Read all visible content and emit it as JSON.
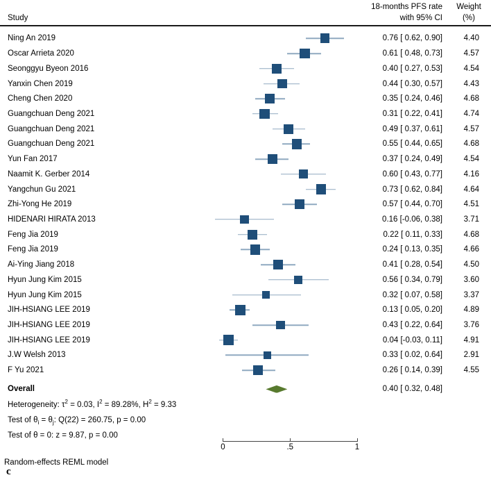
{
  "header": {
    "study_col": "Study",
    "effect_col_line1": "18-months PFS rate",
    "effect_col_line2": "with 95% CI",
    "weight_col_line1": "Weight",
    "weight_col_line2": "(%)"
  },
  "chart_data": {
    "type": "forest",
    "effect_measure": "18-months PFS rate with 95% CI",
    "xlim": [
      0,
      1
    ],
    "x_ticks": [
      {
        "label": "0",
        "value": 0
      },
      {
        "label": ".5",
        "value": 0.5
      },
      {
        "label": "1",
        "value": 1
      }
    ],
    "studies": [
      {
        "name": "Ning An 2019",
        "est": 0.76,
        "lo": 0.62,
        "hi": 0.9,
        "weight": 4.4,
        "est_label": "0.76 [ 0.62, 0.90]",
        "weight_label": "4.40"
      },
      {
        "name": "Oscar Arrieta 2020",
        "est": 0.61,
        "lo": 0.48,
        "hi": 0.73,
        "weight": 4.57,
        "est_label": "0.61 [ 0.48, 0.73]",
        "weight_label": "4.57"
      },
      {
        "name": "Seonggyu Byeon 2016",
        "est": 0.4,
        "lo": 0.27,
        "hi": 0.53,
        "weight": 4.54,
        "est_label": "0.40 [ 0.27, 0.53]",
        "weight_label": "4.54"
      },
      {
        "name": "Yanxin Chen 2019",
        "est": 0.44,
        "lo": 0.3,
        "hi": 0.57,
        "weight": 4.43,
        "est_label": "0.44 [ 0.30, 0.57]",
        "weight_label": "4.43"
      },
      {
        "name": "Cheng Chen 2020",
        "est": 0.35,
        "lo": 0.24,
        "hi": 0.46,
        "weight": 4.68,
        "est_label": "0.35 [ 0.24, 0.46]",
        "weight_label": "4.68"
      },
      {
        "name": "Guangchuan Deng 2021",
        "est": 0.31,
        "lo": 0.22,
        "hi": 0.41,
        "weight": 4.74,
        "est_label": "0.31 [ 0.22, 0.41]",
        "weight_label": "4.74"
      },
      {
        "name": "Guangchuan Deng 2021",
        "est": 0.49,
        "lo": 0.37,
        "hi": 0.61,
        "weight": 4.57,
        "est_label": "0.49 [ 0.37, 0.61]",
        "weight_label": "4.57"
      },
      {
        "name": "Guangchuan Deng 2021",
        "est": 0.55,
        "lo": 0.44,
        "hi": 0.65,
        "weight": 4.68,
        "est_label": "0.55 [ 0.44, 0.65]",
        "weight_label": "4.68"
      },
      {
        "name": "Yun Fan 2017",
        "est": 0.37,
        "lo": 0.24,
        "hi": 0.49,
        "weight": 4.54,
        "est_label": "0.37 [ 0.24, 0.49]",
        "weight_label": "4.54"
      },
      {
        "name": "Naamit K. Gerber 2014",
        "est": 0.6,
        "lo": 0.43,
        "hi": 0.77,
        "weight": 4.16,
        "est_label": "0.60 [ 0.43, 0.77]",
        "weight_label": "4.16"
      },
      {
        "name": "Yangchun Gu 2021",
        "est": 0.73,
        "lo": 0.62,
        "hi": 0.84,
        "weight": 4.64,
        "est_label": "0.73 [ 0.62, 0.84]",
        "weight_label": "4.64"
      },
      {
        "name": "Zhi-Yong He 2019",
        "est": 0.57,
        "lo": 0.44,
        "hi": 0.7,
        "weight": 4.51,
        "est_label": "0.57 [ 0.44, 0.70]",
        "weight_label": "4.51"
      },
      {
        "name": "HIDENARI HIRATA 2013",
        "est": 0.16,
        "lo": -0.06,
        "hi": 0.38,
        "weight": 3.71,
        "est_label": "0.16 [-0.06, 0.38]",
        "weight_label": "3.71"
      },
      {
        "name": "Feng Jia 2019",
        "est": 0.22,
        "lo": 0.11,
        "hi": 0.33,
        "weight": 4.68,
        "est_label": "0.22 [ 0.11, 0.33]",
        "weight_label": "4.68"
      },
      {
        "name": "Feng Jia 2019",
        "est": 0.24,
        "lo": 0.13,
        "hi": 0.35,
        "weight": 4.66,
        "est_label": "0.24 [ 0.13, 0.35]",
        "weight_label": "4.66"
      },
      {
        "name": "Ai-Ying Jiang 2018",
        "est": 0.41,
        "lo": 0.28,
        "hi": 0.54,
        "weight": 4.5,
        "est_label": "0.41 [ 0.28, 0.54]",
        "weight_label": "4.50"
      },
      {
        "name": "Hyun Jung Kim 2015",
        "est": 0.56,
        "lo": 0.34,
        "hi": 0.79,
        "weight": 3.6,
        "est_label": "0.56 [ 0.34, 0.79]",
        "weight_label": "3.60"
      },
      {
        "name": "Hyun Jung Kim 2015",
        "est": 0.32,
        "lo": 0.07,
        "hi": 0.58,
        "weight": 3.37,
        "est_label": "0.32 [ 0.07, 0.58]",
        "weight_label": "3.37"
      },
      {
        "name": "JIH-HSIANG LEE 2019",
        "est": 0.13,
        "lo": 0.05,
        "hi": 0.2,
        "weight": 4.89,
        "est_label": "0.13 [ 0.05, 0.20]",
        "weight_label": "4.89"
      },
      {
        "name": "JIH-HSIANG LEE 2019",
        "est": 0.43,
        "lo": 0.22,
        "hi": 0.64,
        "weight": 3.76,
        "est_label": "0.43 [ 0.22, 0.64]",
        "weight_label": "3.76"
      },
      {
        "name": "JIH-HSIANG LEE 2019",
        "est": 0.04,
        "lo": -0.03,
        "hi": 0.11,
        "weight": 4.91,
        "est_label": "0.04 [-0.03, 0.11]",
        "weight_label": "4.91"
      },
      {
        "name": "J.W Welsh 2013",
        "est": 0.33,
        "lo": 0.02,
        "hi": 0.64,
        "weight": 2.91,
        "est_label": "0.33 [ 0.02, 0.64]",
        "weight_label": "2.91"
      },
      {
        "name": "F Yu 2021",
        "est": 0.26,
        "lo": 0.14,
        "hi": 0.39,
        "weight": 4.55,
        "est_label": "0.26 [ 0.14, 0.39]",
        "weight_label": "4.55"
      }
    ],
    "overall": {
      "name": "Overall",
      "est": 0.4,
      "lo": 0.32,
      "hi": 0.48,
      "est_label": "0.40 [ 0.32, 0.48]"
    },
    "stats_lines": [
      [
        {
          "t": "Heterogeneity: τ"
        },
        {
          "t": "2",
          "s": "sup"
        },
        {
          "t": " = 0.03, I"
        },
        {
          "t": "2",
          "s": "sup"
        },
        {
          "t": " = 89.28%, H"
        },
        {
          "t": "2",
          "s": "sup"
        },
        {
          "t": " = 9.33"
        }
      ],
      [
        {
          "t": "Test of θ"
        },
        {
          "t": "i",
          "s": "sub"
        },
        {
          "t": " = θ"
        },
        {
          "t": "j",
          "s": "sub"
        },
        {
          "t": ": Q(22) = 260.75, p = 0.00"
        }
      ],
      [
        {
          "t": "Test of θ = 0: z = 9.87, p = 0.00"
        }
      ]
    ],
    "model_note": "Random-effects REML model",
    "panel_label": "c"
  },
  "colors": {
    "marker": "#1F4E79",
    "ci_line": "#8FA9C0",
    "diamond": "#587A2E",
    "axis": "#444444"
  }
}
